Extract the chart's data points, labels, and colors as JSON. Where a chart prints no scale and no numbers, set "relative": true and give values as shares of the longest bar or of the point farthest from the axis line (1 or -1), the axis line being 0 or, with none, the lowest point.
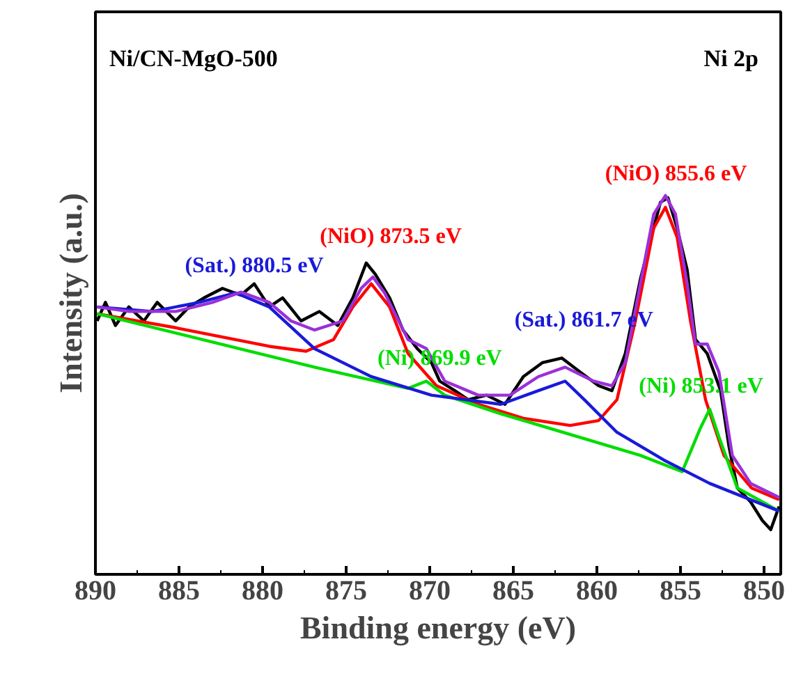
{
  "chart_data": {
    "type": "line",
    "relative": true,
    "xlabel": "Binding energy (eV)",
    "ylabel": "Intensity (a.u.)",
    "xlim": [
      890,
      849
    ],
    "xticks": [
      890,
      885,
      880,
      875,
      870,
      865,
      860,
      855,
      850
    ],
    "grid": false,
    "marker": "none",
    "line_style": "solid",
    "series": [
      {
        "color": "#000000",
        "x": [
          889.9,
          889.4,
          888.8,
          888.0,
          887.1,
          886.3,
          885.2,
          884.4,
          883.5,
          882.4,
          881.3,
          880.5,
          879.6,
          878.8,
          877.7,
          876.6,
          875.5,
          874.6,
          873.8,
          873.25,
          872.4,
          871.6,
          870.75,
          869.9,
          869.4,
          868.5,
          867.7,
          866.6,
          865.5,
          864.4,
          863.25,
          862.1,
          861.0,
          859.9,
          859.1,
          858.3,
          857.4,
          856.9,
          856.2,
          855.75,
          855.2,
          854.6,
          854.1,
          853.4,
          852.6,
          852.1,
          851.6,
          850.8,
          850.1,
          849.6,
          849.1
        ],
        "values": [
          0.669,
          0.718,
          0.657,
          0.706,
          0.669,
          0.718,
          0.669,
          0.706,
          0.73,
          0.755,
          0.737,
          0.767,
          0.706,
          0.73,
          0.669,
          0.694,
          0.657,
          0.73,
          0.822,
          0.792,
          0.73,
          0.645,
          0.596,
          0.559,
          0.51,
          0.485,
          0.461,
          0.473,
          0.449,
          0.522,
          0.559,
          0.571,
          0.534,
          0.498,
          0.485,
          0.583,
          0.779,
          0.865,
          0.982,
          0.994,
          0.914,
          0.804,
          0.62,
          0.583,
          0.485,
          0.338,
          0.228,
          0.191,
          0.142,
          0.118,
          0.179
        ]
      },
      {
        "color": "#ff0000",
        "x": [
          889.9,
          885.2,
          879.6,
          877.4,
          875.75,
          874.6,
          873.5,
          872.4,
          871.3,
          869.6,
          867.1,
          864.4,
          861.6,
          859.9,
          858.8,
          857.7,
          856.6,
          855.9,
          855.2,
          854.4,
          853.5,
          852.4,
          850.75,
          849.1
        ],
        "values": [
          0.688,
          0.651,
          0.602,
          0.589,
          0.62,
          0.706,
          0.767,
          0.706,
          0.583,
          0.498,
          0.449,
          0.412,
          0.393,
          0.406,
          0.461,
          0.669,
          0.914,
          0.969,
          0.89,
          0.669,
          0.461,
          0.314,
          0.228,
          0.197
        ]
      },
      {
        "color": "#00dd00",
        "x": [
          889.9,
          876.9,
          871.3,
          870.2,
          869.1,
          865.75,
          857.4,
          854.9,
          853.8,
          853.25,
          852.7,
          851.6,
          849.1
        ],
        "values": [
          0.688,
          0.547,
          0.491,
          0.51,
          0.473,
          0.424,
          0.314,
          0.271,
          0.387,
          0.436,
          0.363,
          0.228,
          0.167
        ]
      },
      {
        "color": "#1a1ad8",
        "x": [
          889.9,
          886.6,
          883.8,
          881.6,
          879.6,
          876.9,
          873.5,
          869.9,
          865.75,
          863.5,
          861.9,
          860.75,
          858.8,
          856.0,
          853.25,
          849.1
        ],
        "values": [
          0.706,
          0.694,
          0.718,
          0.743,
          0.706,
          0.596,
          0.522,
          0.473,
          0.449,
          0.485,
          0.51,
          0.461,
          0.375,
          0.302,
          0.24,
          0.167
        ]
      },
      {
        "color": "#9b30d9",
        "x": [
          889.9,
          888.0,
          885.2,
          883.0,
          881.3,
          879.6,
          878.3,
          876.9,
          875.2,
          874.1,
          873.4,
          872.7,
          871.3,
          870.2,
          869.1,
          867.1,
          865.2,
          863.5,
          861.9,
          860.2,
          859.1,
          858.3,
          857.4,
          856.6,
          855.9,
          855.3,
          854.6,
          854.1,
          853.4,
          852.7,
          851.9,
          850.8,
          849.1
        ],
        "values": [
          0.706,
          0.694,
          0.694,
          0.718,
          0.745,
          0.718,
          0.669,
          0.645,
          0.669,
          0.755,
          0.785,
          0.743,
          0.62,
          0.596,
          0.51,
          0.473,
          0.473,
          0.522,
          0.547,
          0.51,
          0.498,
          0.559,
          0.767,
          0.951,
          1.0,
          0.951,
          0.767,
          0.608,
          0.608,
          0.534,
          0.314,
          0.24,
          0.203
        ]
      }
    ],
    "annotations": [
      "Ni/CN-MgO-500",
      "Ni 2p",
      {
        "text": "(Sat.) 880.5 eV",
        "x": 880.5,
        "y": 0.723
      },
      {
        "text": "(NiO) 873.5 eV",
        "x": 873.5,
        "y": 0.767
      },
      {
        "text": "(Ni) 869.9 eV",
        "x": 869.9,
        "y": 0.5
      },
      {
        "text": "(Sat.) 861.7 eV",
        "x": 861.7,
        "y": 0.501
      },
      {
        "text": "(NiO) 855.6 eV",
        "x": 855.6,
        "y": 0.935
      },
      {
        "text": "(Ni) 853.1 eV",
        "x": 853.1,
        "y": 0.416
      }
    ]
  }
}
